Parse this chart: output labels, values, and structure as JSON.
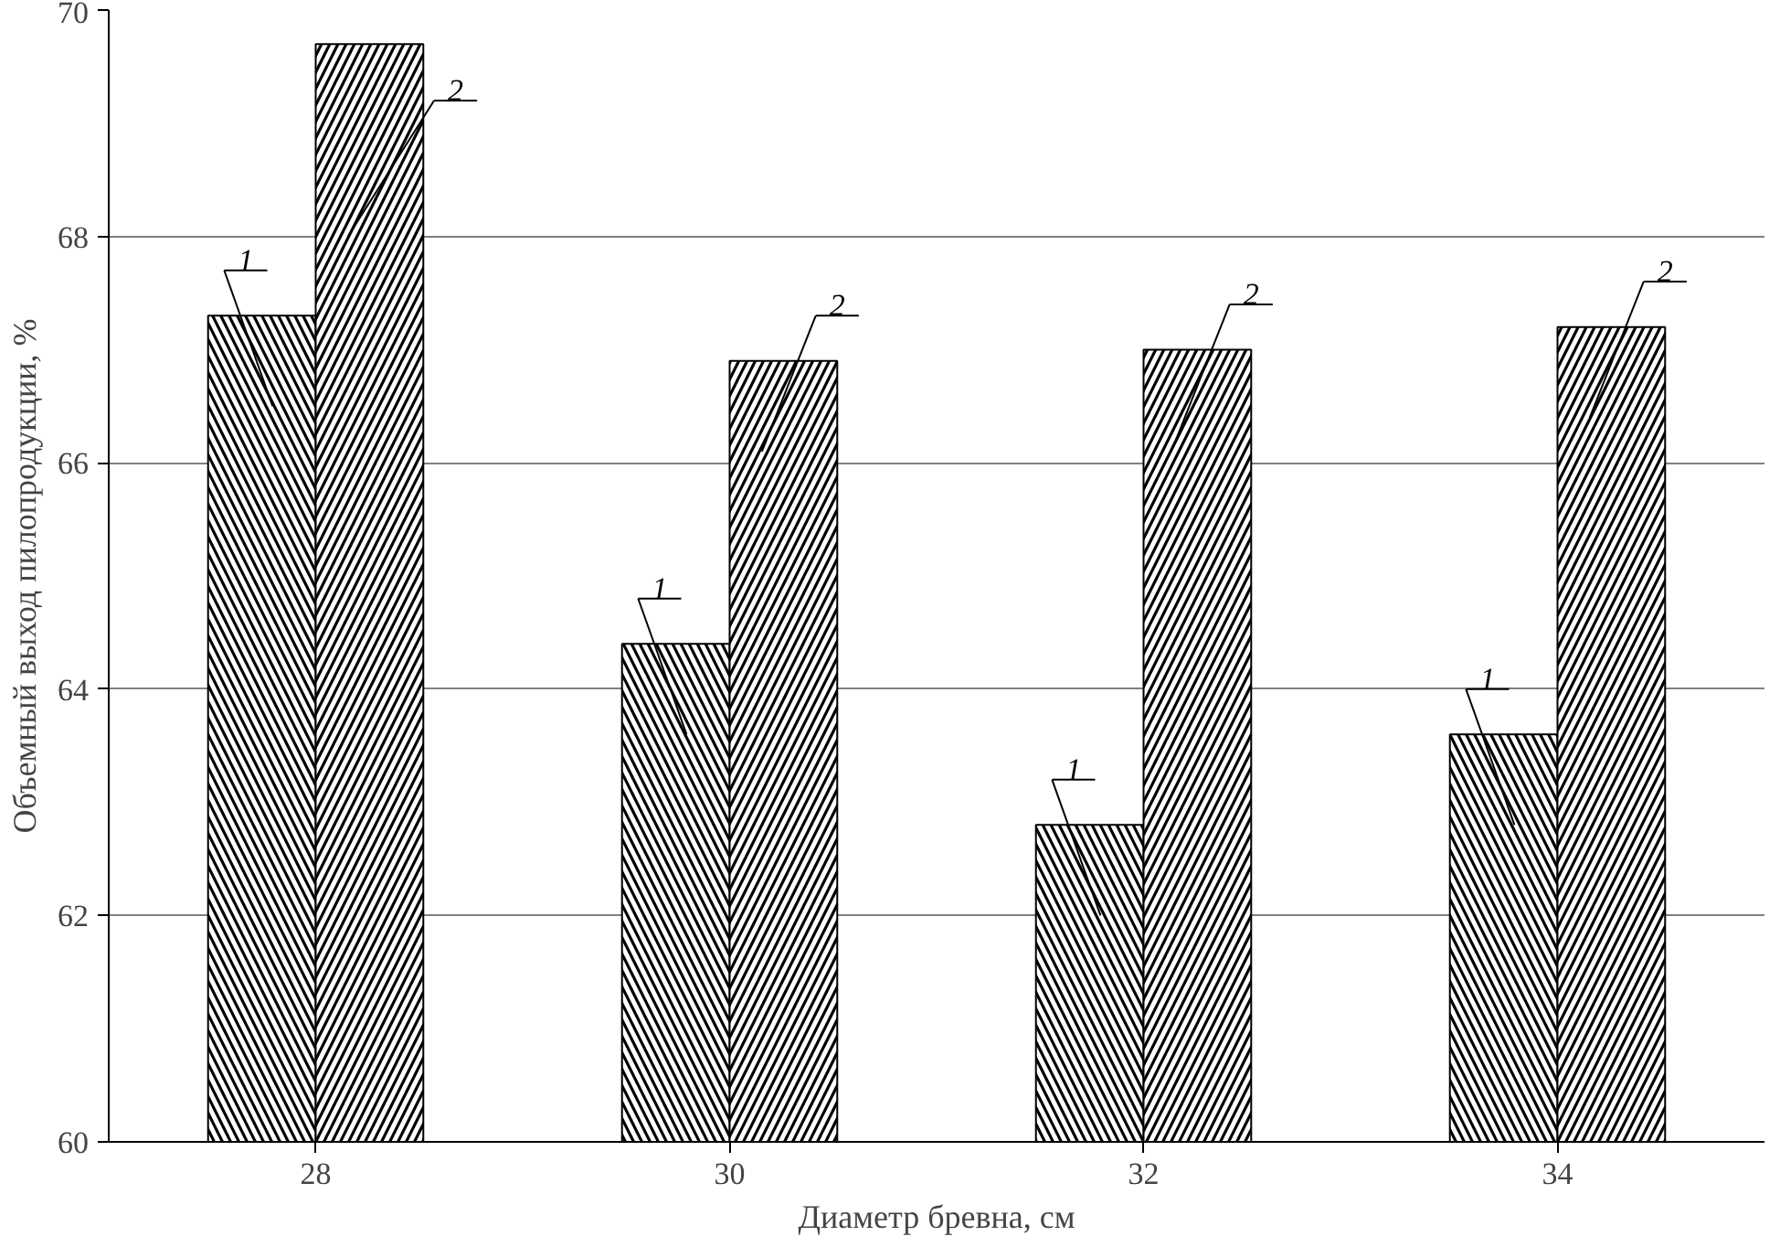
{
  "chart_data": {
    "type": "bar",
    "xlabel": "Диаметр бревна, см",
    "ylabel": "Объемный выход пилопродукции, %",
    "categories": [
      "28",
      "30",
      "32",
      "34"
    ],
    "series": [
      {
        "name": "1",
        "color": "#000000",
        "values": [
          67.3,
          64.4,
          62.8,
          63.6
        ]
      },
      {
        "name": "2",
        "color": "#000000",
        "values": [
          69.7,
          66.9,
          67.0,
          67.2
        ]
      }
    ],
    "ylim": [
      60,
      70
    ],
    "yticks": [
      60,
      62,
      64,
      66,
      68,
      70
    ],
    "grid": "y"
  }
}
